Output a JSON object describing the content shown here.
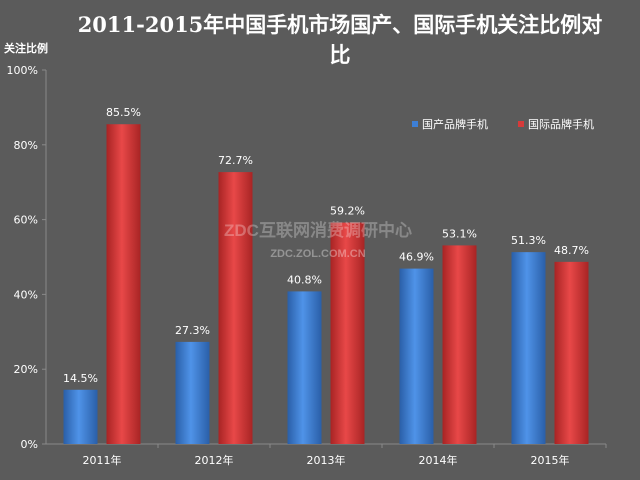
{
  "chart_data": {
    "type": "bar",
    "title": "2011-2015年中国手机市场国产、国际手机关注比例对比",
    "ylabel": "关注比例",
    "xlabel": "",
    "categories": [
      "2011年",
      "2012年",
      "2013年",
      "2014年",
      "2015年"
    ],
    "ylim": [
      0,
      100
    ],
    "yticks": [
      "0%",
      "20%",
      "40%",
      "60%",
      "80%",
      "100%"
    ],
    "ytick_values": [
      0,
      20,
      40,
      60,
      80,
      100
    ],
    "series": [
      {
        "name": "国产品牌手机",
        "color": "#3d7fd6",
        "values": [
          14.5,
          27.3,
          40.8,
          46.9,
          51.3
        ],
        "labels": [
          "14.5%",
          "27.3%",
          "40.8%",
          "46.9%",
          "51.3%"
        ]
      },
      {
        "name": "国际品牌手机",
        "color": "#d63a3a",
        "values": [
          85.5,
          72.7,
          59.2,
          53.1,
          48.7
        ],
        "labels": [
          "85.5%",
          "72.7%",
          "59.2%",
          "53.1%",
          "48.7%"
        ]
      }
    ],
    "legend_position": "top-right",
    "grid": false
  },
  "watermark": {
    "line1": "ZDC互联网消费调研中心",
    "line2": "ZDC.ZOL.COM.CN"
  },
  "colors": {
    "background": "#5b5b5b",
    "axis": "#8a8a8a",
    "text": "#ffffff"
  }
}
